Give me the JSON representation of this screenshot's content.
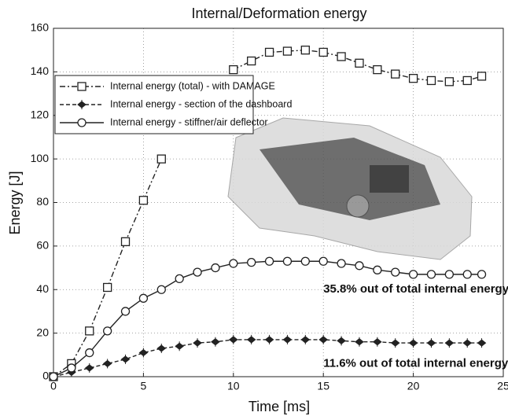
{
  "chart_data": {
    "type": "line",
    "title": "Internal/Deformation energy",
    "x_label": "Time [ms]",
    "y_label": "Energy [J]",
    "xlim": [
      0,
      25
    ],
    "ylim": [
      0,
      160
    ],
    "xticks": [
      0,
      5,
      10,
      15,
      20,
      25
    ],
    "yticks": [
      0,
      20,
      40,
      60,
      80,
      100,
      120,
      140,
      160
    ],
    "grid": true,
    "legend": "upper left",
    "x": [
      0,
      1,
      2,
      3,
      4,
      5,
      6,
      7,
      8,
      9,
      10,
      11,
      12,
      13,
      14,
      15,
      16,
      17,
      18,
      19,
      20,
      21,
      22,
      23,
      23.8
    ],
    "series": [
      {
        "name": "Internal energy (total) - with DAMAGE",
        "color": "#222",
        "marker": "square",
        "dash": "dashdot",
        "values": [
          0,
          6,
          21,
          41,
          62,
          81,
          100,
          null,
          null,
          null,
          141,
          145,
          149,
          149.5,
          150,
          149,
          147,
          144,
          141,
          139,
          137,
          136,
          135.5,
          136,
          138
        ]
      },
      {
        "name": "Internal energy - section of the dashboard",
        "color": "#222",
        "marker": "plus",
        "dash": "dashed",
        "values": [
          0,
          2,
          4,
          6,
          8,
          11,
          13,
          14,
          15.5,
          16,
          17,
          17,
          17,
          17,
          17,
          17,
          16.5,
          16,
          16,
          15.5,
          15.5,
          15.5,
          15.5,
          15.5,
          15.5
        ]
      },
      {
        "name": "Internal energy - stiffner/air deflector",
        "color": "#222",
        "marker": "circle",
        "dash": "solid",
        "values": [
          0,
          4,
          11,
          21,
          30,
          36,
          40,
          45,
          48,
          50,
          52,
          52.5,
          53,
          53,
          53,
          53,
          52,
          51,
          49,
          48,
          47,
          47,
          47,
          47,
          47
        ]
      }
    ],
    "annotations": [
      {
        "text": "35.8% out of total internal energy",
        "x": 15,
        "y": 40
      },
      {
        "text": "11.6% out of total internal energy",
        "x": 15,
        "y": 6
      }
    ]
  }
}
